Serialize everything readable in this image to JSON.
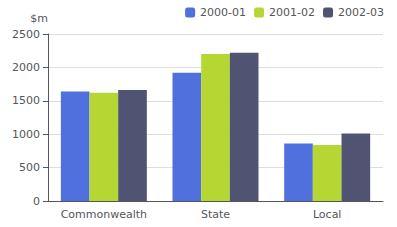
{
  "chart_data": {
    "type": "bar",
    "categories": [
      "Commonwealth",
      "State",
      "Local"
    ],
    "series": [
      {
        "name": "2000-01",
        "values": [
          1640,
          1920,
          860
        ]
      },
      {
        "name": "2001-02",
        "values": [
          1620,
          2200,
          840
        ]
      },
      {
        "name": "2002-03",
        "values": [
          1660,
          2220,
          1010
        ]
      }
    ],
    "ylabel": "$m",
    "ylim": [
      0,
      2500
    ],
    "yticks": [
      0,
      500,
      1000,
      1500,
      2000,
      2500
    ],
    "grid": true,
    "legend": "upper right"
  }
}
